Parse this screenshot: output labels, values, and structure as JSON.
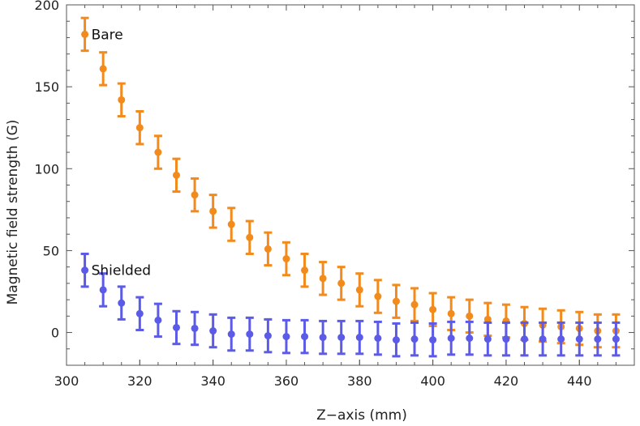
{
  "chart_data": {
    "type": "scatter",
    "xlabel": "Z−axis (mm)",
    "ylabel": "Magnetic field strength (G)",
    "xlim": [
      300,
      455
    ],
    "ylim": [
      -20,
      200
    ],
    "xticks": [
      300,
      320,
      340,
      360,
      380,
      400,
      420,
      440
    ],
    "yticks": [
      0,
      50,
      100,
      150,
      200
    ],
    "grid": false,
    "error_bars": true,
    "series": [
      {
        "name": "Bare",
        "color": "#F28A1C",
        "label_at_x": 305,
        "x": [
          305,
          310,
          315,
          320,
          325,
          330,
          335,
          340,
          345,
          350,
          355,
          360,
          365,
          370,
          375,
          380,
          385,
          390,
          395,
          400,
          405,
          410,
          415,
          420,
          425,
          430,
          435,
          440,
          445,
          450
        ],
        "y": [
          182,
          161,
          142,
          125,
          110,
          96,
          84,
          74,
          66,
          58,
          51,
          45,
          38,
          33,
          30,
          26,
          22,
          19,
          17,
          14,
          11.5,
          10,
          8,
          7,
          5.5,
          4.5,
          3.5,
          2.5,
          1,
          1
        ],
        "error": [
          10,
          10,
          10,
          10,
          10,
          10,
          10,
          10,
          10,
          10,
          10,
          10,
          10,
          10,
          10,
          10,
          10,
          10,
          10,
          10,
          10,
          10,
          10,
          10,
          10,
          10,
          10,
          10,
          10,
          10
        ]
      },
      {
        "name": "Shielded",
        "color": "#5B5BE8",
        "label_at_x": 305,
        "x": [
          305,
          310,
          315,
          320,
          325,
          330,
          335,
          340,
          345,
          350,
          355,
          360,
          365,
          370,
          375,
          380,
          385,
          390,
          395,
          400,
          405,
          410,
          415,
          420,
          425,
          430,
          435,
          440,
          445,
          450
        ],
        "y": [
          38,
          26,
          18,
          11.5,
          7.5,
          3,
          2.5,
          1,
          -1,
          -1,
          -2,
          -2.5,
          -2.5,
          -3,
          -3,
          -3,
          -3.5,
          -4.5,
          -4,
          -4.5,
          -3.5,
          -3.5,
          -4,
          -4,
          -4,
          -4,
          -4,
          -4,
          -4,
          -4
        ],
        "error": [
          10,
          10,
          10,
          10,
          10,
          10,
          10,
          10,
          10,
          10,
          10,
          10,
          10,
          10,
          10,
          10,
          10,
          10,
          10,
          10,
          10,
          10,
          10,
          10,
          10,
          10,
          10,
          10,
          10,
          10
        ]
      }
    ]
  }
}
